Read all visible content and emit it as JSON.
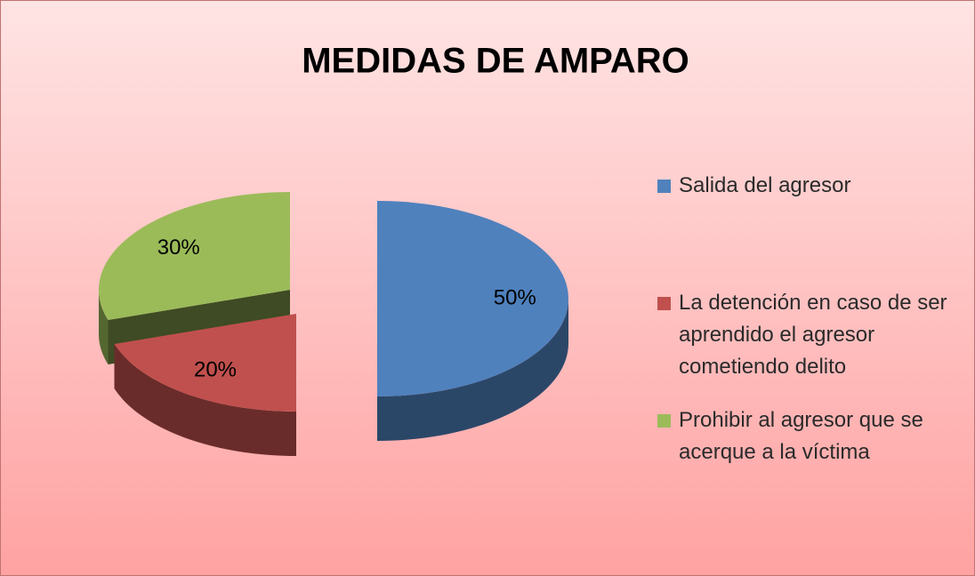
{
  "chart_data": {
    "type": "pie",
    "title": "MEDIDAS DE AMPARO",
    "categories": [
      "Salida del agresor",
      "La detención en caso de ser aprendido el agresor cometiendo delito",
      "Prohibir al agresor que se acerque a la víctima"
    ],
    "values": [
      50,
      20,
      30
    ],
    "value_labels": [
      "50%",
      "20%",
      "30%"
    ],
    "colors": [
      "#4f81bd",
      "#c0504d",
      "#9bbb59"
    ],
    "legend": "right"
  }
}
